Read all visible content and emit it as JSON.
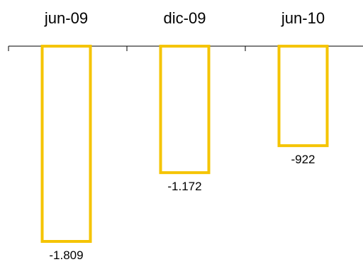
{
  "chart_data": {
    "type": "bar",
    "categories": [
      "jun-09",
      "dic-09",
      "jun-10"
    ],
    "values": [
      -1809,
      -1172,
      -922
    ],
    "value_labels": [
      "-1.809",
      "-1.172",
      "-922"
    ],
    "title": "",
    "xlabel": "",
    "ylabel": "",
    "ylim": [
      -1809,
      0
    ],
    "category_axis_position": "top",
    "grid": false,
    "legend": "none",
    "bar_style": "outline",
    "bar_color": "#F5C400",
    "axis_color": "#000000"
  }
}
